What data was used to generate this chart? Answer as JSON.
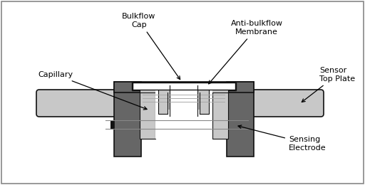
{
  "bg_color": "#ffffff",
  "border_color": "#555555",
  "dark_gray": "#666666",
  "light_gray": "#c8c8c8",
  "white": "#ffffff",
  "black": "#111111",
  "labels": {
    "bulkflow_cap": "Bulkflow\nCap",
    "anti_bulkflow": "Anti-bulkflow\nMembrane",
    "capillary": "Capillary",
    "sensor_top_plate": "Sensor\nTop Plate",
    "sensing_electrode": "Sensing\nElectrode"
  },
  "figsize": [
    5.12,
    2.6
  ],
  "dpi": 100
}
